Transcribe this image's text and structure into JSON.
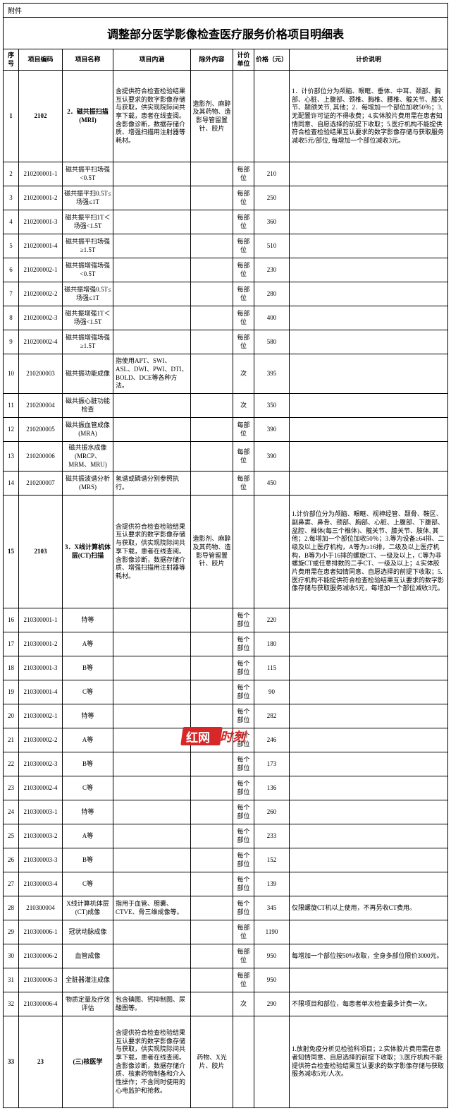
{
  "attachment_label": "附件",
  "title": "调整部分医学影像检查医疗服务价格项目明细表",
  "headers": {
    "seq": "序号",
    "code": "项目编码",
    "name": "项目名称",
    "content": "项目内涵",
    "exclude": "除外内容",
    "unit": "计价单位",
    "price": "价格（元）",
    "note": "计价说明"
  },
  "watermark": {
    "part1": "红网",
    "part2": "时刻"
  },
  "rows": [
    {
      "seq": "1",
      "code": "2102",
      "name": "2．磁共振扫描(MRI)",
      "content": "含提供符合检查检验结果互认要求的数字影像存储与获取，供实现院际间共享下载，患者在线查阅。含影像诊断，数据存储介质、增强扫描用注射器等耗材。",
      "exclude": "造影剂、麻醉及其药物、造影导管留置针、胶片",
      "unit": "",
      "price": "",
      "note": "1．计价部位分为颅脑、眼眶、垂体、中耳、颈部、胸部、心脏、上腹部、颈椎、胸椎、腰椎、髋关节、膝关节、颞颌关节, 其他；2．每增加一个部位加收50％；3.无配置许可证的不得收费；4.实体胶片费用需在患者知情同意、自愿选择的前提下收取；5.医疗机构不能提供符合检查检验结果互认要求的数字影像存储与获取服务减收5元/部位, 每增加一个部位减收3元。",
      "bold": true,
      "tall": "tall"
    },
    {
      "seq": "2",
      "code": "210200001-1",
      "name": "磁共振平扫场强<0.5T",
      "content": "",
      "exclude": "",
      "unit": "每部位",
      "price": "210",
      "note": ""
    },
    {
      "seq": "3",
      "code": "210200001-2",
      "name": "磁共振平扫0.5T≤场强≤1T",
      "content": "",
      "exclude": "",
      "unit": "每部位",
      "price": "250",
      "note": ""
    },
    {
      "seq": "4",
      "code": "210200001-3",
      "name": "磁共振平扫1T＜场强<1.5T",
      "content": "",
      "exclude": "",
      "unit": "每部位",
      "price": "360",
      "note": ""
    },
    {
      "seq": "5",
      "code": "210200001-4",
      "name": "磁共振平扫场强≥1.5T",
      "content": "",
      "exclude": "",
      "unit": "每部位",
      "price": "510",
      "note": ""
    },
    {
      "seq": "6",
      "code": "210200002-1",
      "name": "磁共振增强场强<0.5T",
      "content": "",
      "exclude": "",
      "unit": "每部位",
      "price": "230",
      "note": ""
    },
    {
      "seq": "7",
      "code": "210200002-2",
      "name": "磁共振增强0.5T≤场强≤1T",
      "content": "",
      "exclude": "",
      "unit": "每部位",
      "price": "280",
      "note": ""
    },
    {
      "seq": "8",
      "code": "210200002-3",
      "name": "磁共振增强1T＜场强<1.5T",
      "content": "",
      "exclude": "",
      "unit": "每部位",
      "price": "400",
      "note": ""
    },
    {
      "seq": "9",
      "code": "210200002-4",
      "name": "磁共振增强场强≥1.5T",
      "content": "",
      "exclude": "",
      "unit": "每部位",
      "price": "580",
      "note": ""
    },
    {
      "seq": "10",
      "code": "210200003",
      "name": "磁共振功能成像",
      "content": "指使用APT、SWI、ASL、DWI、PWI、DTI、BOLD、DCE等各种方法。",
      "exclude": "",
      "unit": "次",
      "price": "395",
      "note": ""
    },
    {
      "seq": "11",
      "code": "210200004",
      "name": "磁共振心脏功能检查",
      "content": "",
      "exclude": "",
      "unit": "次",
      "price": "350",
      "note": ""
    },
    {
      "seq": "12",
      "code": "210200005",
      "name": "磁共振血管成像(MRA)",
      "content": "",
      "exclude": "",
      "unit": "每部位",
      "price": "390",
      "note": ""
    },
    {
      "seq": "13",
      "code": "210200006",
      "name": "磁共振水成像(MRCP、MRM、MRU)",
      "content": "",
      "exclude": "",
      "unit": "每部位",
      "price": "390",
      "note": ""
    },
    {
      "seq": "14",
      "code": "210200007",
      "name": "磁共振波谱分析(MRS)",
      "content": "氢谱或磷谱分别参照执行。",
      "exclude": "",
      "unit": "每部位",
      "price": "450",
      "note": ""
    },
    {
      "seq": "15",
      "code": "2103",
      "name": "3．X线计算机体层(CT)扫描",
      "content": "含提供符合检查检验结果互认要求的数字影像存储与获取，供实现院际间共享下载，患者在线查阅。含影像诊断，数据存储介质、增强扫描用注射器等耗材。",
      "exclude": "造影剂、麻醉及其药物、造影导管留置针、胶片",
      "unit": "",
      "price": "",
      "note": "1.计价部位分为颅脑、眼眶、视神经管、颞骨、鞍区、副鼻窦、鼻骨、颈部、胸部、心脏、上腹部、下腹部、盆腔、椎体(每三个椎体)、髋关节、膝关节、肢体, 其他；2.每增加一个部位加收50％；3.等为设备≥64排、二级及以上医疗机构，A等为≥16排，二级及以上医疗机构，B等为小于16排的螺旋CT、一级及以上，C等为非螺旋CT或任意排数的二手CT、一级及以上；4.实体胶片费用需在患者知情同意、自愿选择的前提下收取；5.医疗机构不能提供符合检查检验结果互认要求的数字影像存储与获取服务减收5元，每增加一个部位减收3元。",
      "bold": true,
      "tall": "tall2"
    },
    {
      "seq": "16",
      "code": "210300001-1",
      "name": "特等",
      "content": "",
      "exclude": "",
      "unit": "每个部位",
      "price": "220",
      "note": ""
    },
    {
      "seq": "17",
      "code": "210300001-2",
      "name": "A等",
      "content": "",
      "exclude": "",
      "unit": "每个部位",
      "price": "180",
      "note": ""
    },
    {
      "seq": "18",
      "code": "210300001-3",
      "name": "B等",
      "content": "",
      "exclude": "",
      "unit": "每个部位",
      "price": "115",
      "note": ""
    },
    {
      "seq": "19",
      "code": "210300001-4",
      "name": "C等",
      "content": "",
      "exclude": "",
      "unit": "每个部位",
      "price": "90",
      "note": ""
    },
    {
      "seq": "20",
      "code": "210300002-1",
      "name": "特等",
      "content": "",
      "exclude": "",
      "unit": "每个部位",
      "price": "282",
      "note": ""
    },
    {
      "seq": "21",
      "code": "210300002-2",
      "name": "A等",
      "content": "",
      "exclude": "",
      "unit": "每个部位",
      "price": "246",
      "note": ""
    },
    {
      "seq": "22",
      "code": "210300002-3",
      "name": "B等",
      "content": "",
      "exclude": "",
      "unit": "每个部位",
      "price": "173",
      "note": ""
    },
    {
      "seq": "23",
      "code": "210300002-4",
      "name": "C等",
      "content": "",
      "exclude": "",
      "unit": "每个部位",
      "price": "136",
      "note": ""
    },
    {
      "seq": "24",
      "code": "210300003-1",
      "name": "特等",
      "content": "",
      "exclude": "",
      "unit": "每个部位",
      "price": "260",
      "note": ""
    },
    {
      "seq": "25",
      "code": "210300003-2",
      "name": "A等",
      "content": "",
      "exclude": "",
      "unit": "每个部位",
      "price": "233",
      "note": ""
    },
    {
      "seq": "26",
      "code": "210300003-3",
      "name": "B等",
      "content": "",
      "exclude": "",
      "unit": "每个部位",
      "price": "152",
      "note": ""
    },
    {
      "seq": "27",
      "code": "210300003-4",
      "name": "C等",
      "content": "",
      "exclude": "",
      "unit": "每个部位",
      "price": "139",
      "note": ""
    },
    {
      "seq": "28",
      "code": "210300004",
      "name": "X线计算机体层(CT)成像",
      "content": "指用于血管、胆囊、CTVE、骨三维成像等。",
      "exclude": "",
      "unit": "每个部位",
      "price": "345",
      "note": "仅限螺旋CT机以上使用，不再另收CT费用。"
    },
    {
      "seq": "29",
      "code": "210300006-1",
      "name": "冠状动脉成像",
      "content": "",
      "exclude": "",
      "unit": "每部位",
      "price": "1190",
      "note": ""
    },
    {
      "seq": "30",
      "code": "210300006-2",
      "name": "血管成像",
      "content": "",
      "exclude": "",
      "unit": "每部位",
      "price": "950",
      "note": "每增加一个部位按50%收取，全身多部位限价3000元。"
    },
    {
      "seq": "31",
      "code": "210300006-3",
      "name": "全脏器灌注成像",
      "content": "",
      "exclude": "",
      "unit": "每部位",
      "price": "950",
      "note": ""
    },
    {
      "seq": "32",
      "code": "210300006-4",
      "name": "物质定量及疗效评估",
      "content": "包含碘图、钙抑制图、尿酸图等。",
      "exclude": "",
      "unit": "次",
      "price": "290",
      "note": "不限项目和部位，每患者单次检查最多计费一次。"
    },
    {
      "seq": "33",
      "code": "23",
      "name": "(三)核医学",
      "content": "含提供符合检查检验结果互认要求的数字影像存储与获取，供实现院际间共享下载，患者在线查阅。含影像诊断，数据存储介质、核素药物制备和介入性操作；不含同时使用的心电监护和抢救。",
      "exclude": "药物、X光片、胶片",
      "unit": "",
      "price": "",
      "note": "1.放射免疫分析见检验科项目；2.实体胶片费用需在患者知情同意、自愿选择的前提下收取；3.医疗机构不能提供符合检查检验结果互认要求的数字影像存储与获取服务减收5元/人次。",
      "bold": true,
      "tall": "tall"
    }
  ]
}
